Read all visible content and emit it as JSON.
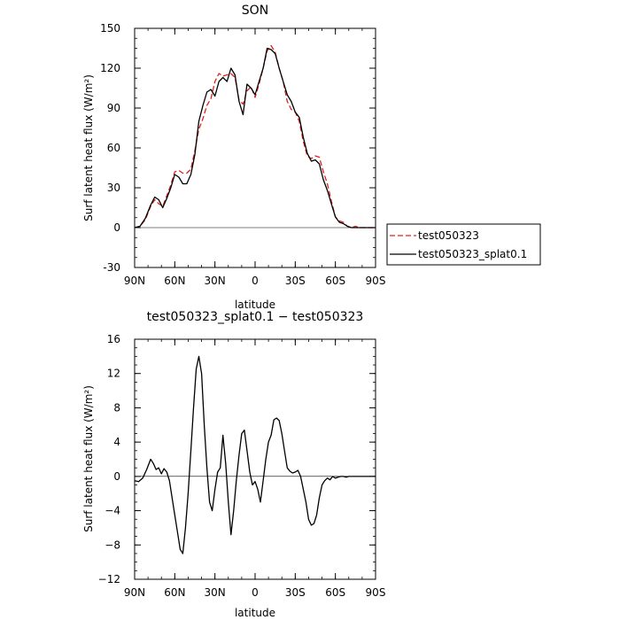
{
  "chart_data": [
    {
      "type": "line",
      "title": "SON",
      "xlabel": "latitude",
      "ylabel": "Surf latent heat flux (W/m²)",
      "xlim": [
        90,
        -90
      ],
      "ylim": [
        -30,
        150
      ],
      "xticks": [
        90,
        60,
        30,
        0,
        -30,
        -60,
        -90
      ],
      "xtick_labels": [
        "90N",
        "60N",
        "30N",
        "0",
        "30S",
        "60S",
        "90S"
      ],
      "yticks": [
        -30,
        0,
        30,
        60,
        90,
        120,
        150
      ],
      "ytick_labels": [
        "-30",
        "0",
        "30",
        "60",
        "90",
        "120",
        "150"
      ],
      "legend_position": "right",
      "series": [
        {
          "name": "test050323",
          "color": "#e0201f",
          "style": "dashed",
          "x": [
            90,
            86,
            82,
            78,
            75,
            72,
            69,
            66,
            63,
            60,
            57,
            54,
            51,
            48,
            45,
            42,
            39,
            36,
            33,
            30,
            27,
            24,
            21,
            18,
            15,
            12,
            9,
            6,
            3,
            0,
            -3,
            -6,
            -9,
            -12,
            -15,
            -18,
            -21,
            -24,
            -27,
            -30,
            -33,
            -36,
            -39,
            -42,
            -45,
            -48,
            -51,
            -54,
            -57,
            -60,
            -63,
            -66,
            -69,
            -72,
            -75,
            -78,
            -82,
            -86,
            -90
          ],
          "y": [
            0,
            1,
            6,
            16,
            21,
            18,
            16,
            24,
            32,
            42,
            43,
            41,
            41,
            44,
            58,
            74,
            82,
            92,
            97,
            110,
            116,
            114,
            115,
            116,
            113,
            96,
            93,
            103,
            106,
            98,
            108,
            120,
            133,
            137,
            132,
            120,
            110,
            95,
            89,
            87,
            80,
            65,
            54,
            52,
            54,
            53,
            42,
            33,
            20,
            8,
            5,
            4,
            1,
            0,
            1,
            0,
            0,
            0,
            0
          ]
        },
        {
          "name": "test050323_splat0.1",
          "color": "#000000",
          "style": "solid",
          "x": [
            90,
            86,
            82,
            78,
            75,
            72,
            69,
            66,
            63,
            60,
            57,
            54,
            51,
            48,
            45,
            42,
            39,
            36,
            33,
            30,
            27,
            24,
            21,
            18,
            15,
            12,
            9,
            6,
            3,
            0,
            -3,
            -6,
            -9,
            -12,
            -15,
            -18,
            -21,
            -24,
            -27,
            -30,
            -33,
            -36,
            -39,
            -42,
            -45,
            -48,
            -51,
            -54,
            -57,
            -60,
            -63,
            -66,
            -69,
            -72,
            -75,
            -78,
            -82,
            -86,
            -90
          ],
          "y": [
            0,
            1,
            7,
            17,
            23,
            21,
            15,
            22,
            30,
            40,
            38,
            33,
            33,
            40,
            55,
            80,
            92,
            102,
            104,
            99,
            110,
            113,
            110,
            120,
            115,
            95,
            85,
            108,
            105,
            100,
            110,
            120,
            135,
            134,
            131,
            120,
            110,
            100,
            95,
            87,
            83,
            68,
            56,
            50,
            51,
            48,
            36,
            28,
            18,
            8,
            4,
            3,
            1,
            0,
            0,
            0,
            0,
            0,
            0
          ]
        }
      ]
    },
    {
      "type": "line",
      "title": "test050323_splat0.1 − test050323",
      "xlabel": "latitude",
      "ylabel": "Surf latent heat flux (W/m²)",
      "xlim": [
        90,
        -90
      ],
      "ylim": [
        -12,
        16
      ],
      "xticks": [
        90,
        60,
        30,
        0,
        -30,
        -60,
        -90
      ],
      "xtick_labels": [
        "90N",
        "60N",
        "30N",
        "0",
        "30S",
        "60S",
        "90S"
      ],
      "yticks": [
        -12,
        -8,
        -4,
        0,
        4,
        8,
        12,
        16
      ],
      "ytick_labels": [
        "−12",
        "−8",
        "−4",
        "0",
        "4",
        "8",
        "12",
        "16"
      ],
      "series": [
        {
          "color": "#000000",
          "style": "solid",
          "x": [
            90,
            87,
            84,
            81,
            78,
            76,
            74,
            72,
            70,
            68,
            66,
            64,
            62,
            60,
            58,
            56,
            54,
            52,
            50,
            48,
            46,
            44,
            42,
            40,
            38,
            36,
            34,
            32,
            30,
            28,
            26,
            24,
            22,
            20,
            18,
            16,
            14,
            12,
            10,
            8,
            6,
            4,
            2,
            0,
            -2,
            -4,
            -6,
            -8,
            -10,
            -12,
            -14,
            -16,
            -18,
            -20,
            -22,
            -24,
            -26,
            -28,
            -30,
            -32,
            -34,
            -36,
            -38,
            -40,
            -42,
            -44,
            -46,
            -48,
            -50,
            -52,
            -54,
            -56,
            -58,
            -60,
            -62,
            -64,
            -66,
            -68,
            -70,
            -72,
            -75,
            -78,
            -81,
            -84,
            -87,
            -90
          ],
          "y": [
            -0.5,
            -0.6,
            -0.2,
            0.8,
            2.0,
            1.5,
            0.8,
            1.0,
            0.3,
            0.9,
            0.5,
            -0.5,
            -2.5,
            -4.5,
            -6.5,
            -8.5,
            -9.0,
            -6.0,
            -2.0,
            3.0,
            8.0,
            12.5,
            14.0,
            12.0,
            6.0,
            1.0,
            -3.0,
            -4.0,
            -1.5,
            0.5,
            1.0,
            4.8,
            1.5,
            -3.0,
            -6.8,
            -4.0,
            -0.5,
            2.5,
            5.0,
            5.4,
            3.0,
            0.5,
            -1.0,
            -0.6,
            -1.5,
            -3.0,
            -0.5,
            2.0,
            4.0,
            4.8,
            6.6,
            6.8,
            6.5,
            5.0,
            3.0,
            1.0,
            0.6,
            0.4,
            0.5,
            0.7,
            0.0,
            -1.5,
            -3.0,
            -5.0,
            -5.7,
            -5.5,
            -4.5,
            -2.5,
            -1.0,
            -0.5,
            -0.2,
            -0.4,
            0.0,
            -0.2,
            -0.1,
            0.0,
            0.0,
            -0.1,
            0.0,
            0.0,
            0.0,
            0.0,
            0.0,
            0.0,
            0.0,
            0.0
          ]
        }
      ]
    }
  ]
}
